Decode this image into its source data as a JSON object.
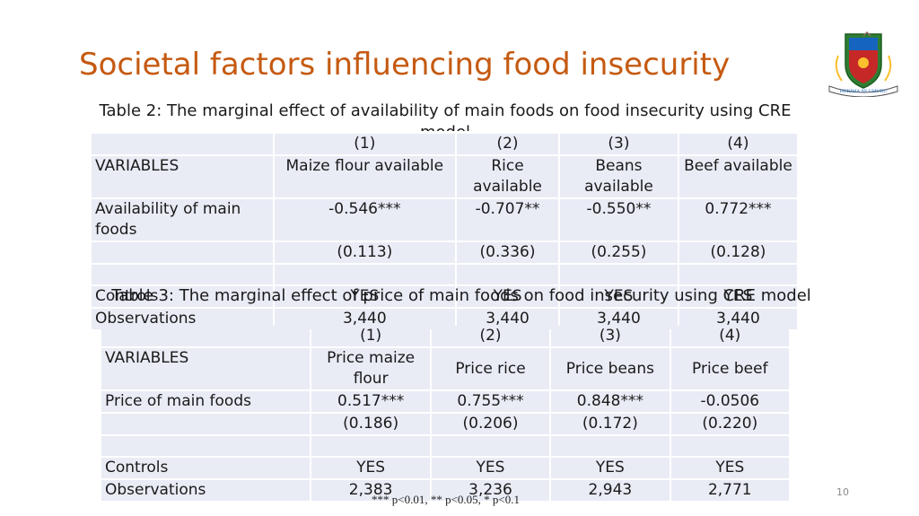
{
  "title": "Societal factors influencing food insecurity",
  "logo": {
    "icon": "university-crest-icon",
    "motto": "HEKIMA NI UHURU"
  },
  "table2": {
    "caption": "Table 2:  The marginal effect of availability of main foods on food insecurity using CRE model",
    "header_numbers": [
      "",
      "(1)",
      "(2)",
      "(3)",
      "(4)"
    ],
    "header_names": [
      "VARIABLES",
      "Maize flour available",
      "Rice available",
      "Beans available",
      "Beef available"
    ],
    "rows": [
      [
        "Availability of main foods",
        "-0.546***",
        "-0.707**",
        "-0.550**",
        "0.772***"
      ],
      [
        "",
        "(0.113)",
        "(0.336)",
        "(0.255)",
        "(0.128)"
      ],
      [
        "",
        "",
        "",
        "",
        ""
      ],
      [
        "Controls",
        "YES",
        "YES",
        "YES",
        "YES"
      ],
      [
        "Observations",
        "3,440",
        "3,440",
        "3,440",
        "3,440"
      ]
    ]
  },
  "table3": {
    "caption": "Table 3:  The marginal effect of price of main foods on food insecurity using CRE model",
    "header_numbers": [
      "",
      "(1)",
      "(2)",
      "(3)",
      "(4)"
    ],
    "header_names": [
      "VARIABLES",
      "Price maize flour",
      "Price rice",
      "Price beans",
      "Price beef"
    ],
    "rows": [
      [
        "Price of main foods",
        "0.517***",
        "0.755***",
        "0.848***",
        "-0.0506"
      ],
      [
        "",
        "(0.186)",
        "(0.206)",
        "(0.172)",
        "(0.220)"
      ],
      [
        "",
        "",
        "",
        "",
        ""
      ],
      [
        "Controls",
        "YES",
        "YES",
        "YES",
        "YES"
      ],
      [
        "Observations",
        "2,383",
        "3,236",
        "2,943",
        "2,771"
      ]
    ]
  },
  "footnote": "*** p<0.01, ** p<0.05, * p<0.1",
  "page_number": "10",
  "colors": {
    "title": "#c55a11",
    "cell": "#e9ebf5"
  }
}
